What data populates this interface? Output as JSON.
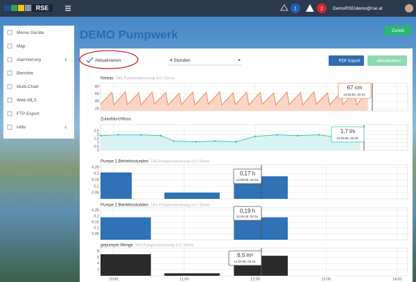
{
  "topbar": {
    "logo": "RSE",
    "badges": [
      1,
      2
    ],
    "user": "DemoRSE\\demo@rse.at"
  },
  "sidebar": {
    "items": [
      "Meine Geräte",
      "Map",
      "Alarmierung",
      "Berichte",
      "Multi-Chart",
      "Web-MLS",
      "FTP Export",
      "Hilfe"
    ]
  },
  "page": {
    "title": "DEMO Pumpwerk",
    "back_button": "Zurück",
    "auto_refresh": "Aktualisieren",
    "range": "4 Stunden",
    "pdf_button": "PDF Export",
    "refresh_button": "aktualisieren"
  },
  "xaxis": {
    "xlim": [
      9.82,
      14.15
    ],
    "xticks": [
      {
        "value": 10,
        "label": "10:00"
      },
      {
        "value": 11,
        "label": "11:00"
      },
      {
        "value": 12,
        "label": "12:00"
      },
      {
        "value": 13,
        "label": "13:00"
      },
      {
        "value": 14,
        "label": "14:00"
      }
    ]
  },
  "charts": [
    {
      "type": "area",
      "title": "Niveau",
      "subtitle": "TAS Pumpensteuerung 4.0 / Demo",
      "color": "#f0875a",
      "fill": "#fbd5c3",
      "ylim": [
        14,
        89
      ],
      "yticks": [
        20,
        40,
        60,
        80
      ],
      "x": [
        9.82,
        9.98,
        10.01,
        10.17,
        10.2,
        10.36,
        10.39,
        10.55,
        10.58,
        10.74,
        10.77,
        10.93,
        10.96,
        11.12,
        11.15,
        11.31,
        11.34,
        11.5,
        11.53,
        11.69,
        11.72,
        11.88,
        11.91,
        12.07,
        12.1,
        12.26,
        12.29,
        12.45,
        12.48,
        12.64,
        12.67,
        12.83,
        12.86,
        13.02,
        13.05,
        13.21,
        13.24,
        13.4,
        13.43,
        13.59
      ],
      "values": [
        32,
        64,
        30,
        66,
        31,
        63,
        30,
        65,
        32,
        64,
        30,
        62,
        31,
        65,
        30,
        64,
        32,
        66,
        30,
        63,
        31,
        65,
        30,
        64,
        32,
        62,
        30,
        65,
        31,
        64,
        30,
        66,
        32,
        63,
        30,
        65,
        31,
        64,
        30,
        67
      ],
      "tooltip": {
        "value": "67 cm",
        "time": "14:06:54, 02.04."
      }
    },
    {
      "type": "area",
      "title": "Zulaufdurchfluss",
      "color": "#3cc6bd",
      "fill": "#d8f3f1",
      "points": true,
      "ylim": [
        0,
        3.3
      ],
      "yticks": [
        {
          "value": 0,
          "label": "0"
        },
        {
          "value": 0.5,
          "label": "0,5"
        },
        {
          "value": 1,
          "label": "1"
        },
        {
          "value": 1.5,
          "label": "1,5"
        },
        {
          "value": 2,
          "label": "2"
        },
        {
          "value": 2.5,
          "label": "2,5"
        }
      ],
      "x": [
        9.82,
        10.07,
        10.39,
        10.67,
        10.85,
        11.17,
        11.43,
        11.73,
        12.0,
        12.31,
        12.6,
        12.9,
        13.14,
        13.48
      ],
      "values": [
        1.9,
        2.0,
        2.0,
        1.9,
        1.2,
        1.1,
        1.2,
        1.1,
        1.8,
        2.0,
        1.9,
        2.0,
        1.7,
        1.8
      ],
      "tooltip": {
        "value": "1,7 l/s",
        "time": "14:00:00, 02.04."
      }
    },
    {
      "type": "bar",
      "title": "Pumpe 1 Betriebsstunden",
      "subtitle": "TAS Pumpensteuerung 4.0 / Demo",
      "color": "#2f72b5",
      "ylim": [
        0,
        0.27
      ],
      "yticks": [
        {
          "value": 0.05,
          "label": "0,05"
        },
        {
          "value": 0.1,
          "label": "0,1"
        },
        {
          "value": 0.15,
          "label": "0,15"
        },
        {
          "value": 0.2,
          "label": "0,2"
        },
        {
          "value": 0.25,
          "label": "0,25"
        }
      ],
      "x_start": [
        9.82,
        10.72,
        11.7,
        12.09
      ],
      "x_end": [
        10.26,
        11.5,
        12.09,
        12.46
      ],
      "values": [
        0.21,
        0.05,
        0.17,
        0.18
      ],
      "tooltip": {
        "value": "0,17 h",
        "time": "12:00:00, 02.04."
      }
    },
    {
      "type": "bar",
      "title": "Pumpe 2 Betriebsstunden",
      "subtitle": "TAS Pumpensteuerung 4.0 / Demo",
      "color": "#2f72b5",
      "ylim": [
        0,
        0.27
      ],
      "yticks": [
        {
          "value": 0.05,
          "label": "0,05"
        },
        {
          "value": 0.1,
          "label": "0,1"
        },
        {
          "value": 0.15,
          "label": "0,15"
        },
        {
          "value": 0.2,
          "label": "0,2"
        },
        {
          "value": 0.25,
          "label": "0,25"
        }
      ],
      "x_start": [
        9.82,
        11.7,
        12.09
      ],
      "x_end": [
        10.53,
        12.09,
        12.46
      ],
      "values": [
        0.19,
        0.19,
        0.19
      ],
      "tooltip": {
        "value": "0,19 h",
        "time": "12:00:00, 02.04."
      }
    },
    {
      "type": "bar",
      "title": "gepumpte Menge",
      "subtitle": "TAS Pumpensteuerung 4.0 / Demo",
      "color": "#2a2a2a",
      "ylim": [
        0,
        9
      ],
      "yticks": [
        2,
        4,
        6,
        8
      ],
      "x_start": [
        9.82,
        10.72,
        11.7,
        12.09
      ],
      "x_end": [
        10.53,
        11.5,
        12.09,
        12.46
      ],
      "values": [
        7,
        0.8,
        6.5,
        6.5
      ],
      "tooltip": {
        "value": "6,5 m³",
        "time": "12:00:00, 02.04."
      }
    }
  ]
}
